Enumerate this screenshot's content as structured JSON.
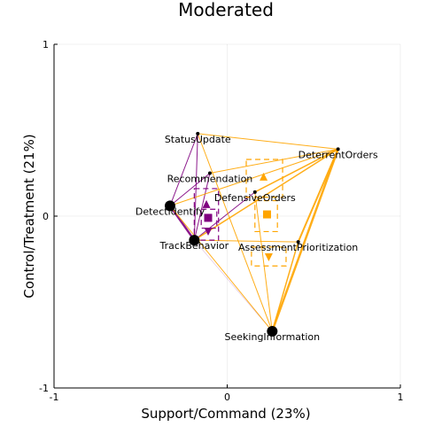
{
  "chart_data": {
    "type": "scatter",
    "title": "Moderated",
    "xlabel": "Support/Command (23%)",
    "ylabel": "Control/Treatment (21%)",
    "xlim": [
      -1,
      1
    ],
    "ylim": [
      -1,
      1
    ],
    "xticks": [
      "-1",
      "0",
      "1"
    ],
    "yticks": [
      "-1",
      "0",
      "1"
    ],
    "grid": true,
    "colors": {
      "purple": "#800080",
      "orange": "#FFA500",
      "point": "#000000"
    },
    "points": [
      {
        "label": "StatusUpdate",
        "x": -0.17,
        "y": 0.48,
        "size": "small"
      },
      {
        "label": "DeterrentOrders",
        "x": 0.64,
        "y": 0.39,
        "size": "small"
      },
      {
        "label": "Recommendation",
        "x": -0.1,
        "y": 0.25,
        "size": "small"
      },
      {
        "label": "DefensiveOrders",
        "x": 0.16,
        "y": 0.14,
        "size": "small"
      },
      {
        "label": "DetectIdentify",
        "x": -0.33,
        "y": 0.06,
        "size": "large"
      },
      {
        "label": "TrackBehavior",
        "x": -0.19,
        "y": -0.14,
        "size": "large"
      },
      {
        "label": "AssessmentPrioritization",
        "x": 0.41,
        "y": -0.15,
        "size": "small"
      },
      {
        "label": "SeekingInformation",
        "x": 0.26,
        "y": -0.67,
        "size": "large"
      }
    ],
    "groups": [
      {
        "color": "purple",
        "means": [
          {
            "marker": "triangle-up",
            "x": -0.12,
            "y": 0.07
          },
          {
            "marker": "square",
            "x": -0.11,
            "y": -0.01
          },
          {
            "marker": "triangle-down",
            "x": -0.11,
            "y": -0.09
          }
        ],
        "boxes": [
          {
            "x": [
              -0.19,
              -0.05
            ],
            "y": [
              0.16,
              -0.14
            ]
          },
          {
            "x": [
              -0.15,
              -0.06
            ],
            "y": [
              0.04,
              -0.07
            ]
          }
        ],
        "edges": [
          {
            "from": "StatusUpdate",
            "to": "DetectIdentify",
            "weight": 1.0
          },
          {
            "from": "StatusUpdate",
            "to": "TrackBehavior",
            "weight": 1.0
          },
          {
            "from": "DetectIdentify",
            "to": "TrackBehavior",
            "weight": 2.5
          },
          {
            "from": "Recommendation",
            "to": "TrackBehavior",
            "weight": 1.0
          },
          {
            "from": "DetectIdentify",
            "to": "Recommendation",
            "weight": 1.0
          },
          {
            "from": "DefensiveOrders",
            "to": "TrackBehavior",
            "weight": 1.0
          },
          {
            "from": "TrackBehavior",
            "to": "SeekingInformation",
            "weight": 0.4
          }
        ]
      },
      {
        "color": "orange",
        "means": [
          {
            "marker": "triangle-up",
            "x": 0.21,
            "y": 0.23
          },
          {
            "marker": "square",
            "x": 0.23,
            "y": 0.01
          },
          {
            "marker": "triangle-down",
            "x": 0.24,
            "y": -0.24
          }
        ],
        "boxes": [
          {
            "x": [
              0.11,
              0.32
            ],
            "y": [
              0.33,
              0.11
            ]
          },
          {
            "x": [
              0.16,
              0.29
            ],
            "y": [
              0.09,
              -0.09
            ]
          },
          {
            "x": [
              0.14,
              0.34
            ],
            "y": [
              -0.18,
              -0.29
            ]
          }
        ],
        "edges": [
          {
            "from": "StatusUpdate",
            "to": "DeterrentOrders",
            "weight": 1.0
          },
          {
            "from": "StatusUpdate",
            "to": "SeekingInformation",
            "weight": 1.0
          },
          {
            "from": "Recommendation",
            "to": "DeterrentOrders",
            "weight": 1.0
          },
          {
            "from": "DetectIdentify",
            "to": "DeterrentOrders",
            "weight": 1.0
          },
          {
            "from": "TrackBehavior",
            "to": "DeterrentOrders",
            "weight": 1.5
          },
          {
            "from": "TrackBehavior",
            "to": "AssessmentPrioritization",
            "weight": 1.0
          },
          {
            "from": "DefensiveOrders",
            "to": "DeterrentOrders",
            "weight": 1.5
          },
          {
            "from": "AssessmentPrioritization",
            "to": "DeterrentOrders",
            "weight": 2.0
          },
          {
            "from": "SeekingInformation",
            "to": "DeterrentOrders",
            "weight": 2.5
          },
          {
            "from": "SeekingInformation",
            "to": "AssessmentPrioritization",
            "weight": 1.5
          },
          {
            "from": "DetectIdentify",
            "to": "SeekingInformation",
            "weight": 1.0
          },
          {
            "from": "DefensiveOrders",
            "to": "SeekingInformation",
            "weight": 1.0
          }
        ]
      }
    ]
  }
}
